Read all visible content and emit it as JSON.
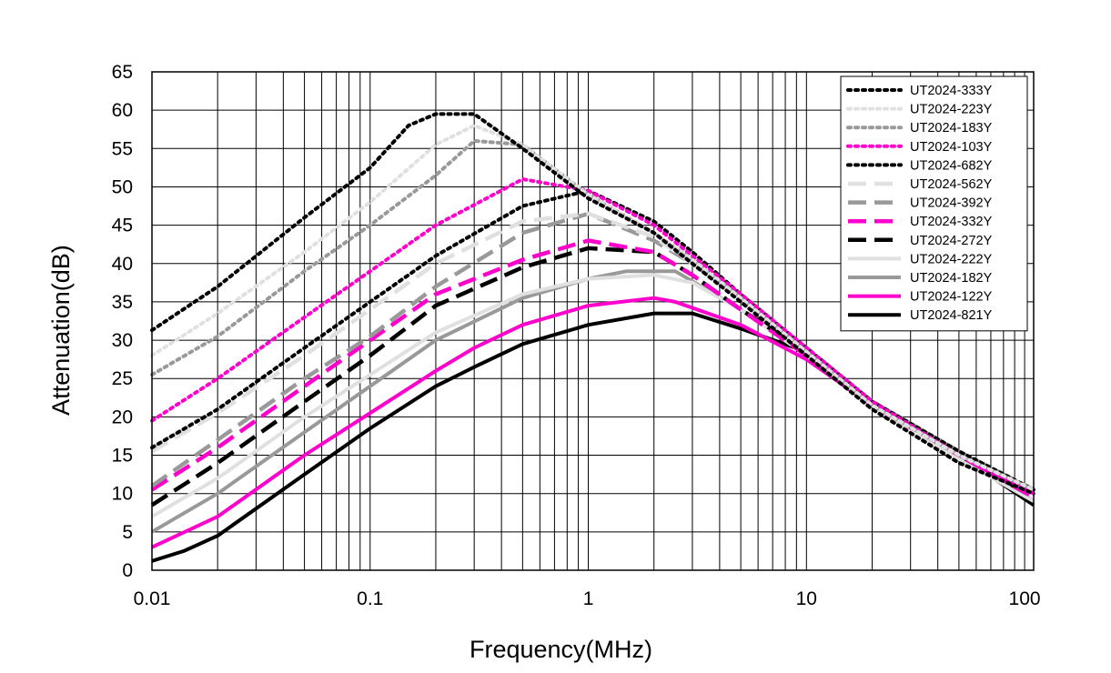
{
  "chart_data": {
    "type": "line",
    "xscale": "log",
    "xlim": [
      0.01,
      110
    ],
    "ylim": [
      0,
      65
    ],
    "grid": true,
    "legend_position": "top-right",
    "xlabel": "Frequency(MHz)",
    "ylabel": "Attenuation(dB)",
    "x_ticks": [
      {
        "value": 0.01,
        "label": "0.01"
      },
      {
        "value": 0.1,
        "label": "0.1"
      },
      {
        "value": 1,
        "label": "1"
      },
      {
        "value": 10,
        "label": "10"
      },
      {
        "value": 100,
        "label": "100"
      }
    ],
    "y_ticks": [
      0,
      5,
      10,
      15,
      20,
      25,
      30,
      35,
      40,
      45,
      50,
      55,
      60,
      65
    ],
    "series": [
      {
        "name": "UT2024-333Y",
        "color": "#000000",
        "dash": "dot",
        "points": [
          [
            0.01,
            31.3
          ],
          [
            0.02,
            37
          ],
          [
            0.05,
            46
          ],
          [
            0.1,
            52.5
          ],
          [
            0.15,
            58
          ],
          [
            0.2,
            59.5
          ],
          [
            0.3,
            59.5
          ],
          [
            0.5,
            55
          ],
          [
            1,
            48.5
          ],
          [
            2,
            44
          ],
          [
            3,
            40
          ],
          [
            5,
            35
          ],
          [
            10,
            28
          ],
          [
            20,
            21
          ],
          [
            50,
            14
          ],
          [
            110,
            10
          ]
        ]
      },
      {
        "name": "UT2024-223Y",
        "color": "#e0e0e0",
        "dash": "dot",
        "points": [
          [
            0.01,
            28
          ],
          [
            0.02,
            33.5
          ],
          [
            0.05,
            41.5
          ],
          [
            0.1,
            48
          ],
          [
            0.2,
            55.5
          ],
          [
            0.3,
            58
          ],
          [
            0.5,
            55.5
          ],
          [
            1,
            49
          ],
          [
            2,
            44
          ],
          [
            3,
            40.5
          ],
          [
            5,
            35.5
          ],
          [
            10,
            28.5
          ],
          [
            20,
            21.5
          ],
          [
            50,
            15
          ],
          [
            110,
            10.5
          ]
        ]
      },
      {
        "name": "UT2024-183Y",
        "color": "#999999",
        "dash": "dot",
        "points": [
          [
            0.01,
            25.5
          ],
          [
            0.02,
            30.5
          ],
          [
            0.05,
            39
          ],
          [
            0.1,
            45
          ],
          [
            0.2,
            51.5
          ],
          [
            0.3,
            56
          ],
          [
            0.5,
            55.5
          ],
          [
            1,
            49
          ],
          [
            2,
            44
          ],
          [
            3,
            40.5
          ],
          [
            5,
            35.5
          ],
          [
            10,
            28.5
          ],
          [
            20,
            21.5
          ],
          [
            50,
            15
          ],
          [
            110,
            10.5
          ]
        ]
      },
      {
        "name": "UT2024-103Y",
        "color": "#ff00cc",
        "dash": "dot",
        "points": [
          [
            0.01,
            19.5
          ],
          [
            0.02,
            25
          ],
          [
            0.05,
            33
          ],
          [
            0.1,
            39
          ],
          [
            0.2,
            45
          ],
          [
            0.5,
            51
          ],
          [
            0.8,
            50
          ],
          [
            1,
            49.5
          ],
          [
            2,
            45
          ],
          [
            3,
            41
          ],
          [
            5,
            36
          ],
          [
            10,
            29
          ],
          [
            20,
            22
          ],
          [
            50,
            15
          ],
          [
            110,
            10
          ]
        ]
      },
      {
        "name": "UT2024-682Y",
        "color": "#000000",
        "dash": "dot",
        "points": [
          [
            0.01,
            16
          ],
          [
            0.02,
            21
          ],
          [
            0.05,
            29
          ],
          [
            0.1,
            35
          ],
          [
            0.2,
            41
          ],
          [
            0.5,
            47.5
          ],
          [
            1,
            49.5
          ],
          [
            2,
            45.5
          ],
          [
            3,
            41.5
          ],
          [
            5,
            36
          ],
          [
            10,
            29
          ],
          [
            20,
            22
          ],
          [
            50,
            15.5
          ],
          [
            110,
            10.5
          ]
        ]
      },
      {
        "name": "UT2024-562Y",
        "color": "#e0e0e0",
        "dash": "dash",
        "points": [
          [
            0.01,
            15.5
          ],
          [
            0.02,
            20.5
          ],
          [
            0.05,
            28
          ],
          [
            0.1,
            34
          ],
          [
            0.2,
            40
          ],
          [
            0.5,
            45.5
          ],
          [
            1,
            46.5
          ],
          [
            2,
            43.5
          ],
          [
            3,
            40
          ],
          [
            5,
            35.5
          ],
          [
            10,
            28.5
          ],
          [
            20,
            21.5
          ],
          [
            50,
            15
          ],
          [
            110,
            10.5
          ]
        ]
      },
      {
        "name": "UT2024-392Y",
        "color": "#999999",
        "dash": "dash",
        "points": [
          [
            0.01,
            11
          ],
          [
            0.02,
            17
          ],
          [
            0.05,
            25
          ],
          [
            0.1,
            30.5
          ],
          [
            0.2,
            37
          ],
          [
            0.5,
            44
          ],
          [
            1,
            46.5
          ],
          [
            2,
            43
          ],
          [
            3,
            40
          ],
          [
            5,
            35.5
          ],
          [
            10,
            29
          ],
          [
            20,
            22
          ],
          [
            50,
            15.5
          ],
          [
            110,
            10.5
          ]
        ]
      },
      {
        "name": "UT2024-332Y",
        "color": "#ff00cc",
        "dash": "dash",
        "points": [
          [
            0.01,
            10.5
          ],
          [
            0.02,
            16
          ],
          [
            0.05,
            24
          ],
          [
            0.1,
            30
          ],
          [
            0.2,
            36
          ],
          [
            0.5,
            40.5
          ],
          [
            1,
            43
          ],
          [
            2,
            41.5
          ],
          [
            3,
            38.5
          ],
          [
            5,
            34
          ],
          [
            10,
            28
          ],
          [
            20,
            21.5
          ],
          [
            50,
            15
          ],
          [
            110,
            9.5
          ]
        ]
      },
      {
        "name": "UT2024-272Y",
        "color": "#000000",
        "dash": "dash",
        "points": [
          [
            0.01,
            8.5
          ],
          [
            0.02,
            14
          ],
          [
            0.05,
            22
          ],
          [
            0.1,
            28
          ],
          [
            0.2,
            34.5
          ],
          [
            0.5,
            39.5
          ],
          [
            1,
            42
          ],
          [
            2,
            41.5
          ],
          [
            3,
            38.5
          ],
          [
            5,
            34
          ],
          [
            10,
            28.5
          ],
          [
            20,
            22
          ],
          [
            50,
            15
          ],
          [
            110,
            9.5
          ]
        ]
      },
      {
        "name": "UT2024-222Y",
        "color": "#e0e0e0",
        "dash": "solid",
        "points": [
          [
            0.01,
            7
          ],
          [
            0.02,
            12
          ],
          [
            0.05,
            20
          ],
          [
            0.1,
            25.5
          ],
          [
            0.2,
            31
          ],
          [
            0.5,
            36
          ],
          [
            1,
            38
          ],
          [
            2,
            38.5
          ],
          [
            3,
            37.5
          ],
          [
            5,
            34
          ],
          [
            10,
            28
          ],
          [
            20,
            21.5
          ],
          [
            50,
            14.5
          ],
          [
            110,
            9
          ]
        ]
      },
      {
        "name": "UT2024-182Y",
        "color": "#999999",
        "dash": "solid",
        "points": [
          [
            0.01,
            5
          ],
          [
            0.02,
            10
          ],
          [
            0.05,
            18
          ],
          [
            0.1,
            24
          ],
          [
            0.2,
            30
          ],
          [
            0.5,
            35.5
          ],
          [
            1,
            38
          ],
          [
            1.5,
            39
          ],
          [
            2.5,
            39
          ],
          [
            5,
            34
          ],
          [
            10,
            28.5
          ],
          [
            20,
            22
          ],
          [
            50,
            15.5
          ],
          [
            110,
            10
          ]
        ]
      },
      {
        "name": "UT2024-122Y",
        "color": "#ff00cc",
        "dash": "solid",
        "points": [
          [
            0.01,
            3
          ],
          [
            0.02,
            7
          ],
          [
            0.05,
            15
          ],
          [
            0.1,
            20.5
          ],
          [
            0.2,
            26
          ],
          [
            0.3,
            29
          ],
          [
            0.5,
            32
          ],
          [
            1,
            34.5
          ],
          [
            2,
            35.5
          ],
          [
            2.5,
            35
          ],
          [
            5,
            32
          ],
          [
            10,
            27.5
          ],
          [
            20,
            21.5
          ],
          [
            50,
            15
          ],
          [
            110,
            9
          ]
        ]
      },
      {
        "name": "UT2024-821Y",
        "color": "#000000",
        "dash": "solid",
        "points": [
          [
            0.01,
            1.2
          ],
          [
            0.014,
            2.5
          ],
          [
            0.02,
            4.5
          ],
          [
            0.05,
            12.5
          ],
          [
            0.1,
            18.5
          ],
          [
            0.2,
            24
          ],
          [
            0.3,
            26.5
          ],
          [
            0.5,
            29.5
          ],
          [
            1,
            32
          ],
          [
            2,
            33.5
          ],
          [
            3,
            33.5
          ],
          [
            5,
            31.5
          ],
          [
            10,
            28.5
          ],
          [
            20,
            22
          ],
          [
            50,
            15
          ],
          [
            110,
            8.5
          ]
        ]
      }
    ]
  }
}
